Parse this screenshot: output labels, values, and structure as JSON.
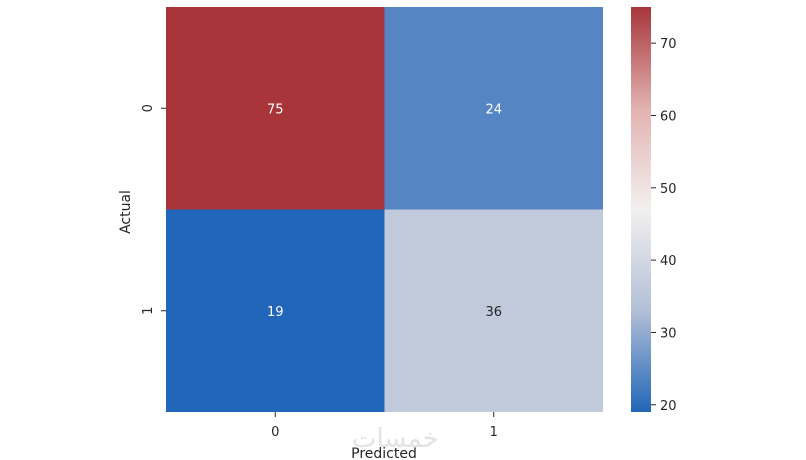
{
  "watermark": "خمسات",
  "chart_data": {
    "type": "heatmap",
    "title": "",
    "xlabel": "Predicted",
    "ylabel": "Actual",
    "x_categories": [
      "0",
      "1"
    ],
    "y_categories": [
      "0",
      "1"
    ],
    "values": [
      [
        75,
        24
      ],
      [
        19,
        36
      ]
    ],
    "colorbar": {
      "vmin": 19,
      "vmax": 75,
      "ticks": [
        20,
        30,
        40,
        50,
        60,
        70
      ],
      "colormap_stops": [
        "#2166b8",
        "#b2bfd6",
        "#f2f0ef",
        "#e2b2b1",
        "#a7353a"
      ]
    },
    "annot_colors": {
      "light_text": "#ffffff",
      "dark_text": "#262626"
    },
    "grid": false,
    "legend": "colorbar-right"
  }
}
